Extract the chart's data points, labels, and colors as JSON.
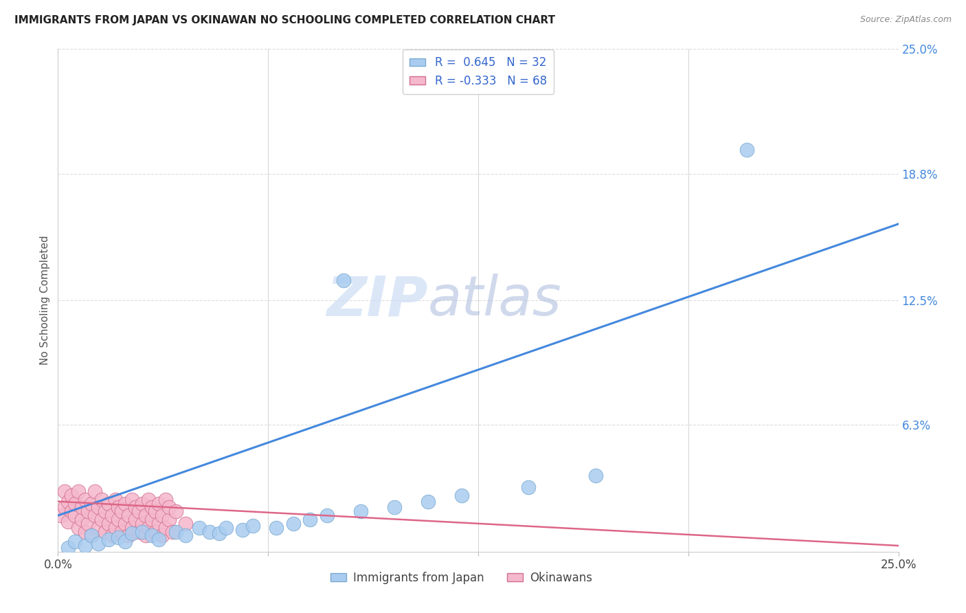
{
  "title": "IMMIGRANTS FROM JAPAN VS OKINAWAN NO SCHOOLING COMPLETED CORRELATION CHART",
  "source": "Source: ZipAtlas.com",
  "ylabel": "No Schooling Completed",
  "right_ytick_labels": [
    "25.0%",
    "18.8%",
    "12.5%",
    "6.3%"
  ],
  "right_ytick_values": [
    0.25,
    0.188,
    0.125,
    0.063
  ],
  "xmin": 0.0,
  "xmax": 0.25,
  "ymin": 0.0,
  "ymax": 0.25,
  "japan_color": "#aaccf0",
  "japan_edge_color": "#7aaad0",
  "okinawa_color": "#f5b8cc",
  "okinawa_edge_color": "#d07090",
  "japan_line_color": "#4488dd",
  "okinawa_line_color": "#dd6688",
  "japan_line_x0": 0.0,
  "japan_line_y0": 0.018,
  "japan_line_x1": 0.25,
  "japan_line_y1": 0.163,
  "okinawa_line_x0": 0.0,
  "okinawa_line_y0": 0.025,
  "okinawa_line_x1": 0.25,
  "okinawa_line_y1": 0.003,
  "grid_color": "#dddddd",
  "grid_hline_values": [
    0.25,
    0.188,
    0.125,
    0.063
  ],
  "watermark_zip_color": "#ccddf5",
  "watermark_atlas_color": "#aabbdd",
  "japan_points_x": [
    0.003,
    0.005,
    0.008,
    0.01,
    0.012,
    0.015,
    0.018,
    0.02,
    0.022,
    0.025,
    0.028,
    0.03,
    0.035,
    0.038,
    0.042,
    0.045,
    0.048,
    0.05,
    0.055,
    0.058,
    0.065,
    0.07,
    0.075,
    0.08,
    0.09,
    0.1,
    0.11,
    0.12,
    0.14,
    0.16,
    0.085,
    0.205
  ],
  "japan_points_y": [
    0.002,
    0.005,
    0.003,
    0.008,
    0.004,
    0.006,
    0.007,
    0.005,
    0.009,
    0.01,
    0.008,
    0.006,
    0.01,
    0.008,
    0.012,
    0.01,
    0.009,
    0.012,
    0.011,
    0.013,
    0.012,
    0.014,
    0.016,
    0.018,
    0.02,
    0.022,
    0.025,
    0.028,
    0.032,
    0.038,
    0.135,
    0.2
  ],
  "okinawa_points_x": [
    0.001,
    0.002,
    0.002,
    0.003,
    0.003,
    0.004,
    0.004,
    0.005,
    0.005,
    0.006,
    0.006,
    0.007,
    0.007,
    0.008,
    0.008,
    0.009,
    0.009,
    0.01,
    0.01,
    0.011,
    0.011,
    0.012,
    0.012,
    0.013,
    0.013,
    0.014,
    0.014,
    0.015,
    0.015,
    0.016,
    0.016,
    0.017,
    0.017,
    0.018,
    0.018,
    0.019,
    0.019,
    0.02,
    0.02,
    0.021,
    0.021,
    0.022,
    0.022,
    0.023,
    0.023,
    0.024,
    0.024,
    0.025,
    0.025,
    0.026,
    0.026,
    0.027,
    0.027,
    0.028,
    0.028,
    0.029,
    0.029,
    0.03,
    0.03,
    0.031,
    0.031,
    0.032,
    0.032,
    0.033,
    0.033,
    0.034,
    0.035,
    0.038
  ],
  "okinawa_points_y": [
    0.018,
    0.022,
    0.03,
    0.015,
    0.025,
    0.02,
    0.028,
    0.018,
    0.024,
    0.012,
    0.03,
    0.016,
    0.022,
    0.01,
    0.026,
    0.014,
    0.02,
    0.008,
    0.024,
    0.018,
    0.03,
    0.012,
    0.022,
    0.016,
    0.026,
    0.01,
    0.02,
    0.014,
    0.024,
    0.008,
    0.018,
    0.012,
    0.026,
    0.016,
    0.022,
    0.01,
    0.02,
    0.014,
    0.024,
    0.008,
    0.018,
    0.012,
    0.026,
    0.016,
    0.022,
    0.01,
    0.02,
    0.014,
    0.024,
    0.008,
    0.018,
    0.012,
    0.026,
    0.016,
    0.022,
    0.01,
    0.02,
    0.014,
    0.024,
    0.008,
    0.018,
    0.012,
    0.026,
    0.016,
    0.022,
    0.01,
    0.02,
    0.014
  ]
}
